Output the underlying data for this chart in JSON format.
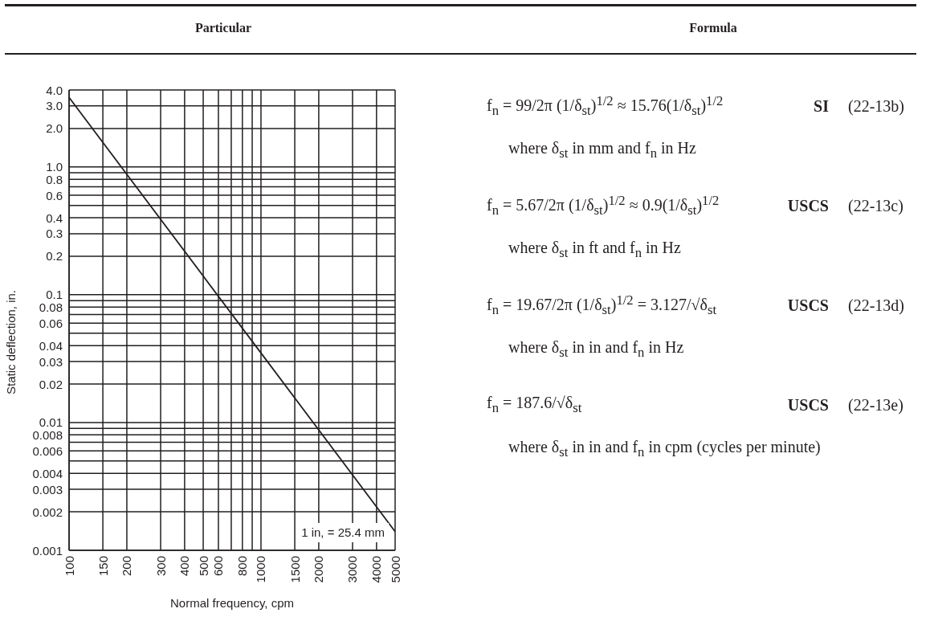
{
  "chart_data": [
    {
      "type": "line",
      "title": "Particular",
      "xlabel": "Normal frequency, cpm",
      "ylabel": "Static deflection, in.",
      "x": [
        100,
        1000,
        5000
      ],
      "values": [
        3.5,
        0.035,
        0.0014
      ],
      "color": "#231f20",
      "log": "xy",
      "xlim": [
        100,
        5000
      ],
      "ylim": [
        0.001,
        4
      ],
      "xticks": [
        100,
        150,
        200,
        300,
        400,
        500,
        600,
        {
          "value": 700,
          "label": null
        },
        800,
        {
          "value": 900,
          "label": null
        },
        1000,
        1500,
        2000,
        3000,
        4000,
        5000
      ],
      "yticks": [
        {
          "value": 4,
          "label": "4.0"
        },
        {
          "value": 3,
          "label": "3.0"
        },
        {
          "value": 2,
          "label": "2.0"
        },
        {
          "value": 1,
          "label": "1.0"
        },
        {
          "value": 0.9,
          "label": null
        },
        0.8,
        {
          "value": 0.7,
          "label": null
        },
        0.6,
        {
          "value": 0.5,
          "label": null
        },
        0.4,
        0.3,
        0.2,
        0.1,
        {
          "value": 0.09,
          "label": null
        },
        0.08,
        {
          "value": 0.07,
          "label": null
        },
        0.06,
        {
          "value": 0.05,
          "label": null
        },
        0.04,
        0.03,
        0.02,
        0.01,
        {
          "value": 0.009,
          "label": null
        },
        0.008,
        {
          "value": 0.007,
          "label": null
        },
        0.006,
        {
          "value": 0.005,
          "label": null
        },
        0.004,
        0.003,
        0.002,
        0.001
      ],
      "grid": true,
      "annotations": [
        "1 in, = 25.4 mm"
      ]
    },
    {
      "type": "other",
      "title": "Formula",
      "annotations": [
        "f$_{n}$ = 99/2π (1/δ$_{st}$)$^{1/2}$ ≈ 15.76(1/δ$_{st}$)$^{1/2}$",
        "SI",
        "(22-13b)",
        "where δ$_{st}$ in mm and f$_{n}$ in Hz",
        "f$_{n}$ = 5.67/2π (1/δ$_{st}$)$^{1/2}$ ≈ 0.9(1/δ$_{st}$)$^{1/2}$",
        "USCS",
        "(22-13c)",
        "where δ$_{st}$ in ft and f$_{n}$ in Hz",
        "f$_{n}$ = 19.67/2π (1/δ$_{st}$)$^{1/2}$ = 3.127/√δ$_{st}$",
        "USCS",
        "(22-13d)",
        "where δ$_{st}$ in in and f$_{n}$ in Hz",
        "f$_{n}$ = 187.6/√δ$_{st}$",
        "USCS",
        "(22-13e)",
        "where δ$_{st}$ in in and f$_{n}$ in cpm (cycles per minute)"
      ]
    }
  ]
}
